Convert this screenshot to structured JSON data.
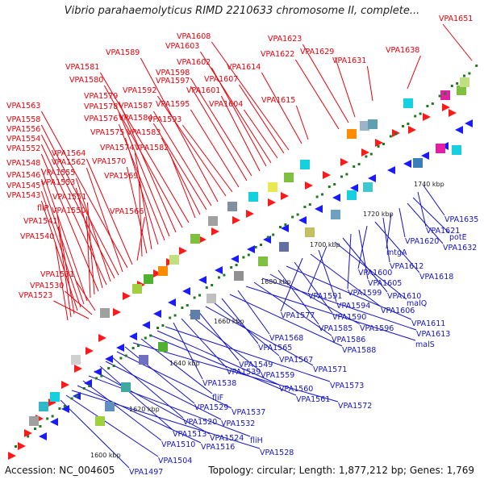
{
  "title": "Vibrio parahaemolyticus RIMD 2210633 chromosome II, complete...",
  "accession": "Accession: NC_004605",
  "stats": "Topology: circular; Length: 1,877,212 bp; Genes: 1,769",
  "colors": {
    "upper_label": "#e8000b",
    "lower_label": "#1414c8",
    "backbone": "#7a7a7a",
    "ticks": "#1f7a1f",
    "plus_strand": "#ff1a1a",
    "minus_strand": "#1a1aff"
  },
  "scale_labels": [
    "1600 kbp",
    "1620 kbp",
    "1640 kbp",
    "1660 kbp",
    "1680 kbp",
    "1700 kbp",
    "1720 kbp",
    "1740 kbp"
  ],
  "upper_genes": [
    {
      "label": "VPA1651"
    },
    {
      "label": "VPA1638"
    },
    {
      "label": "VPA1631"
    },
    {
      "label": "VPA1629"
    },
    {
      "label": "VPA1623"
    },
    {
      "label": "VPA1622"
    },
    {
      "label": "VPA1615"
    },
    {
      "label": "VPA1614"
    },
    {
      "label": "VPA1608"
    },
    {
      "label": "VPA1607"
    },
    {
      "label": "VPA1604"
    },
    {
      "label": "VPA1603"
    },
    {
      "label": "VPA1602"
    },
    {
      "label": "VPA1601"
    },
    {
      "label": "VPA1598"
    },
    {
      "label": "VPA1597"
    },
    {
      "label": "VPA1595"
    },
    {
      "label": "VPA1593"
    },
    {
      "label": "VPA1592"
    },
    {
      "label": "VPA1589"
    },
    {
      "label": "VPA1587"
    },
    {
      "label": "VPA1584"
    },
    {
      "label": "VPA1583"
    },
    {
      "label": "VPA1582"
    },
    {
      "label": "VPA1581"
    },
    {
      "label": "VPA1580"
    },
    {
      "label": "VPA1579"
    },
    {
      "label": "VPA1578"
    },
    {
      "label": "VPA1576"
    },
    {
      "label": "VPA1575"
    },
    {
      "label": "VPA1574"
    },
    {
      "label": "VPA1570"
    },
    {
      "label": "VPA1569"
    },
    {
      "label": "VPA1566"
    },
    {
      "label": "VPA1564"
    },
    {
      "label": "VPA1563"
    },
    {
      "label": "VPA1562"
    },
    {
      "label": "VPA1558"
    },
    {
      "label": "VPA1556"
    },
    {
      "label": "VPA1555"
    },
    {
      "label": "VPA1554"
    },
    {
      "label": "VPA1553"
    },
    {
      "label": "VPA1552"
    },
    {
      "label": "VPA1551"
    },
    {
      "label": "VPA1550"
    },
    {
      "label": "VPA1548"
    },
    {
      "label": "VPA1546"
    },
    {
      "label": "VPA1545"
    },
    {
      "label": "VPA1543"
    },
    {
      "label": "fliP"
    },
    {
      "label": "VPA1541"
    },
    {
      "label": "VPA1540"
    },
    {
      "label": "VPA1531"
    },
    {
      "label": "VPA1530"
    },
    {
      "label": "VPA1523"
    }
  ],
  "lower_genes": [
    {
      "label": "VPA1635"
    },
    {
      "label": "VPA1621"
    },
    {
      "label": "potE"
    },
    {
      "label": "VPA1632"
    },
    {
      "label": "VPA1620"
    },
    {
      "label": "mtgA"
    },
    {
      "label": "VPA1612"
    },
    {
      "label": "VPA1618"
    },
    {
      "label": "VPA1600"
    },
    {
      "label": "VPA1605"
    },
    {
      "label": "VPA1599"
    },
    {
      "label": "VPA1610"
    },
    {
      "label": "malQ"
    },
    {
      "label": "VPA1591"
    },
    {
      "label": "VPA1594"
    },
    {
      "label": "VPA1606"
    },
    {
      "label": "VPA1577"
    },
    {
      "label": "VPA1590"
    },
    {
      "label": "VPA1611"
    },
    {
      "label": "VPA1585"
    },
    {
      "label": "VPA1596"
    },
    {
      "label": "VPA1613"
    },
    {
      "label": "VPA1586"
    },
    {
      "label": "malS"
    },
    {
      "label": "VPA1568"
    },
    {
      "label": "VPA1588"
    },
    {
      "label": "VPA1565"
    },
    {
      "label": "VPA1567"
    },
    {
      "label": "VPA1571"
    },
    {
      "label": "VPA1549"
    },
    {
      "label": "VPA1559"
    },
    {
      "label": "VPA1539"
    },
    {
      "label": "VPA1538"
    },
    {
      "label": "VPA1573"
    },
    {
      "label": "VPA1560"
    },
    {
      "label": "VPA1561"
    },
    {
      "label": "fliF"
    },
    {
      "label": "VPA1572"
    },
    {
      "label": "VPA1529"
    },
    {
      "label": "VPA1537"
    },
    {
      "label": "VPA1520"
    },
    {
      "label": "VPA1532"
    },
    {
      "label": "VPA1513"
    },
    {
      "label": "VPA1524"
    },
    {
      "label": "fliH"
    },
    {
      "label": "VPA1510"
    },
    {
      "label": "VPA1516"
    },
    {
      "label": "VPA1528"
    },
    {
      "label": "VPA1504"
    },
    {
      "label": "VPA1497"
    }
  ]
}
